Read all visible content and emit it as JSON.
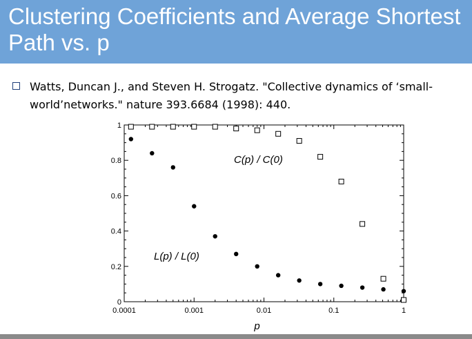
{
  "slide": {
    "title": "Clustering Coefficients and Average Shortest Path vs. p",
    "bullet": "Watts, Duncan J., and Steven H. Strogatz. \"Collective dynamics of ‘small-world’networks.\" nature 393.6684 (1998): 440.",
    "colors": {
      "title_bar": "#6fa3d8",
      "title_text": "#ffffff",
      "bullet_box": "#1f3f7a"
    }
  },
  "chart_data": {
    "type": "scatter",
    "xscale": "log",
    "xlim": [
      0.0001,
      1
    ],
    "ylim": [
      0,
      1
    ],
    "xlabel": "p",
    "ylabel": "",
    "x_ticks": [
      "0.0001",
      "0.001",
      "0.01",
      "0.1",
      "1"
    ],
    "y_ticks": [
      "0",
      "0.2",
      "0.4",
      "0.6",
      "0.8",
      "1"
    ],
    "grid": false,
    "series": [
      {
        "name": "C(p) / C(0)",
        "marker": "open-square",
        "x": [
          0.000125,
          0.00025,
          0.0005,
          0.001,
          0.002,
          0.004,
          0.008,
          0.016,
          0.032,
          0.064,
          0.128,
          0.256,
          0.512,
          1.0
        ],
        "y": [
          0.99,
          0.99,
          0.99,
          0.99,
          0.99,
          0.98,
          0.97,
          0.95,
          0.91,
          0.82,
          0.68,
          0.44,
          0.13,
          0.01
        ]
      },
      {
        "name": "L(p) / L(0)",
        "marker": "filled-circle",
        "x": [
          0.000125,
          0.00025,
          0.0005,
          0.001,
          0.002,
          0.004,
          0.008,
          0.016,
          0.032,
          0.064,
          0.128,
          0.256,
          0.512,
          1.0
        ],
        "y": [
          0.92,
          0.84,
          0.76,
          0.54,
          0.37,
          0.27,
          0.2,
          0.15,
          0.12,
          0.1,
          0.09,
          0.08,
          0.07,
          0.06
        ]
      }
    ],
    "annotations": [
      {
        "text": "C(p) / C(0)"
      },
      {
        "text": "L(p) / L(0)"
      }
    ]
  }
}
